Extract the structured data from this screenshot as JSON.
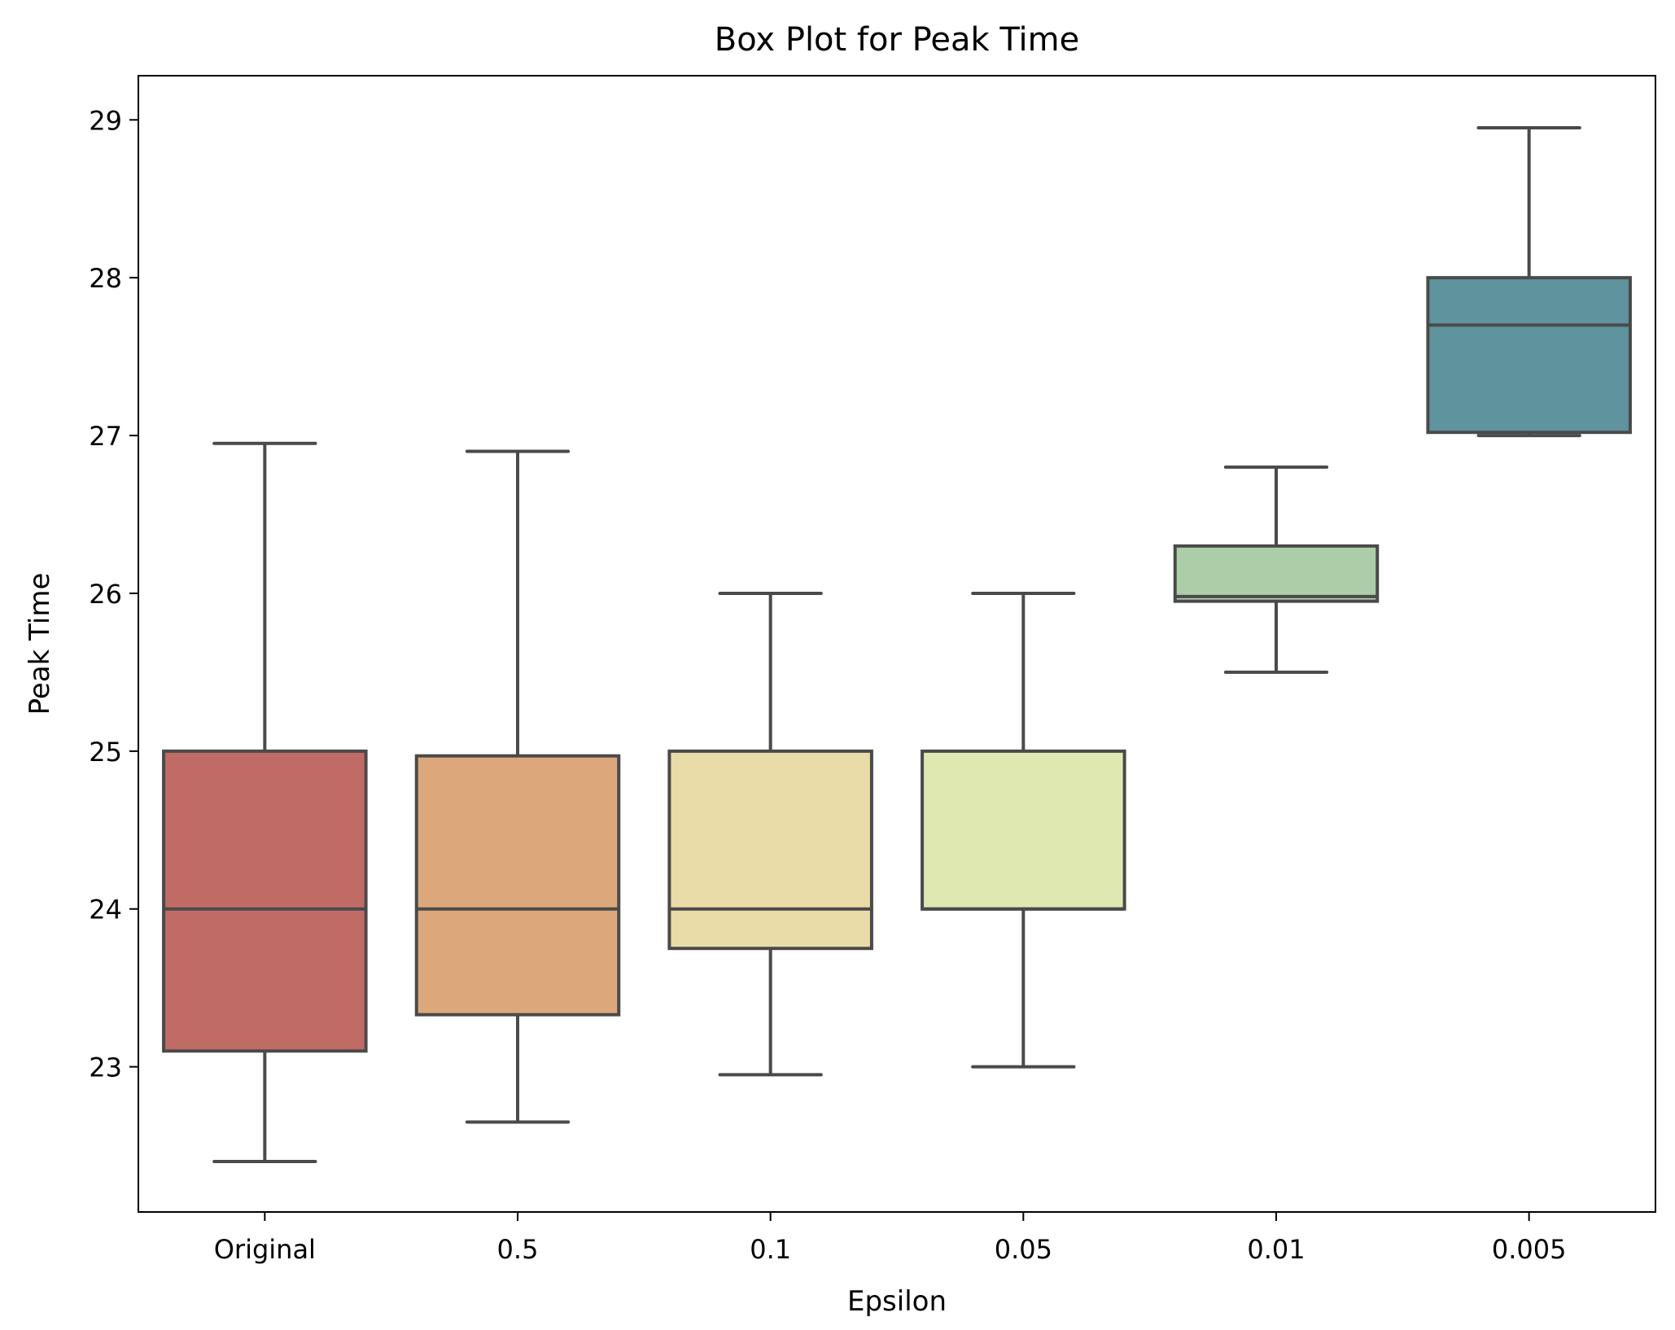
{
  "chart_data": {
    "type": "box",
    "title": "Box Plot for Peak Time",
    "xlabel": "Epsilon",
    "ylabel": "Peak Time",
    "ylim": [
      22.08,
      29.28
    ],
    "yticks": [
      23,
      24,
      25,
      26,
      27,
      28,
      29
    ],
    "grid": false,
    "categories": [
      "Original",
      "0.5",
      "0.1",
      "0.05",
      "0.01",
      "0.005"
    ],
    "boxes": [
      {
        "category": "Original",
        "whisker_low": 22.4,
        "q1": 23.1,
        "median": 24.0,
        "q3": 25.0,
        "whisker_high": 26.95,
        "color": "#c16b67"
      },
      {
        "category": "0.5",
        "whisker_low": 22.65,
        "q1": 23.33,
        "median": 24.0,
        "q3": 24.97,
        "whisker_high": 26.9,
        "color": "#dca87b"
      },
      {
        "category": "0.1",
        "whisker_low": 22.95,
        "q1": 23.75,
        "median": 24.0,
        "q3": 25.0,
        "whisker_high": 26.0,
        "color": "#e9dca8"
      },
      {
        "category": "0.05",
        "whisker_low": 23.0,
        "q1": 24.0,
        "median": 24.0,
        "q3": 25.0,
        "whisker_high": 26.0,
        "color": "#e0e8b2"
      },
      {
        "category": "0.01",
        "whisker_low": 25.5,
        "q1": 25.95,
        "median": 25.98,
        "q3": 26.3,
        "whisker_high": 26.8,
        "color": "#abcda8"
      },
      {
        "category": "0.005",
        "whisker_low": 27.0,
        "q1": 27.02,
        "median": 27.7,
        "q3": 28.0,
        "whisker_high": 28.95,
        "color": "#5f939d"
      }
    ]
  }
}
